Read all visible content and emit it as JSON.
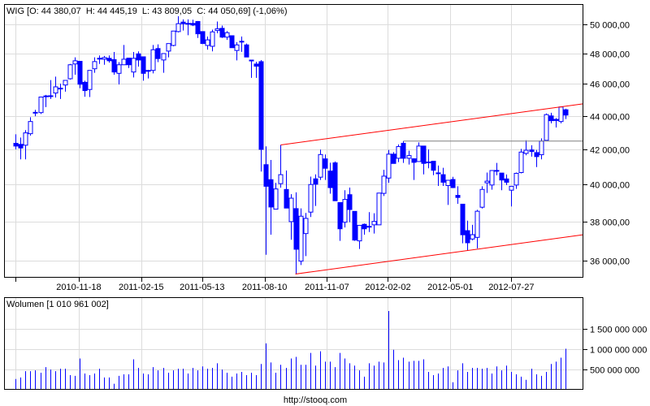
{
  "header": {
    "price_label": "WIG [O: 44 380,07  H: 44 445,19  L: 43 809,05  C: 44 050,69] (-1,06%)",
    "volume_label": "Wolumen [1 010 961 002]",
    "footer_url": "http://stooq.com"
  },
  "colors": {
    "candle": "#0000ff",
    "channel_line": "#ff0000",
    "resistance_line": "#808080",
    "grid": "#dcdcdc",
    "volume_bar": "#0000ff"
  },
  "chart_data": [
    {
      "type": "candlestick",
      "interval": "weekly",
      "y_scale": "log",
      "ylim": [
        35000,
        51000
      ],
      "grid": true,
      "y_ticks": [
        {
          "value": 50000,
          "label": "50 000,00"
        },
        {
          "value": 48000,
          "label": "48 000,00"
        },
        {
          "value": 46000,
          "label": "46 000,00"
        },
        {
          "value": 44000,
          "label": "44 000,00"
        },
        {
          "value": 42000,
          "label": "42 000,00"
        },
        {
          "value": 40000,
          "label": "40 000,00"
        },
        {
          "value": 38000,
          "label": "38 000,00"
        },
        {
          "value": 36000,
          "label": "36 000,00"
        }
      ],
      "x_ticks": [
        "2010-11-18",
        "2011-02-15",
        "2011-05-13",
        "2011-08-10",
        "2011-11-07",
        "2012-02-02",
        "2012-05-01",
        "2012-07-27"
      ],
      "ohlc": [
        [
          42358,
          42894,
          42000,
          42195
        ],
        [
          42293,
          42700,
          41422,
          42081
        ],
        [
          42244,
          43138,
          41422,
          42975
        ],
        [
          42927,
          43919,
          42813,
          43659
        ],
        [
          44180,
          44373,
          43984,
          44220
        ],
        [
          44203,
          45170,
          44119,
          45170
        ],
        [
          45200,
          45305,
          44542,
          45240
        ],
        [
          45220,
          46245,
          45051,
          45250
        ],
        [
          45424,
          46470,
          45136,
          45814
        ],
        [
          45700,
          46017,
          45051,
          45730
        ],
        [
          45933,
          46228,
          45509,
          46228
        ],
        [
          46333,
          47295,
          46280,
          47243
        ],
        [
          47295,
          47733,
          46595,
          47505
        ],
        [
          47470,
          47470,
          45730,
          45983
        ],
        [
          46105,
          46210,
          45187,
          45577
        ],
        [
          45645,
          46875,
          45170,
          46875
        ],
        [
          46980,
          47733,
          46718,
          47453
        ],
        [
          47630,
          47860,
          47295,
          47670
        ],
        [
          47610,
          47825,
          47243,
          47720
        ],
        [
          47668,
          47860,
          47383,
          47505
        ],
        [
          47580,
          48090,
          46595,
          46770
        ],
        [
          46683,
          47418,
          45968,
          47243
        ],
        [
          47243,
          48560,
          47243,
          47610
        ],
        [
          47680,
          47680,
          47033,
          47243
        ],
        [
          46770,
          48090,
          46420,
          47668
        ],
        [
          47965,
          48130,
          47120,
          47558
        ],
        [
          47768,
          47768,
          46210,
          46683
        ],
        [
          46830,
          46910,
          46350,
          46870
        ],
        [
          46875,
          48560,
          46683,
          48240
        ],
        [
          48320,
          48600,
          47420,
          47650
        ],
        [
          47558,
          47983,
          46718,
          47983
        ],
        [
          48150,
          48655,
          47733,
          48655
        ],
        [
          48528,
          49509,
          48470,
          49509
        ],
        [
          49472,
          50547,
          49415,
          50019
        ],
        [
          50130,
          50320,
          49547,
          50019
        ],
        [
          50000,
          50320,
          49226,
          50040
        ],
        [
          50038,
          50300,
          49849,
          49924
        ],
        [
          50170,
          50208,
          49038,
          49320
        ],
        [
          49472,
          49472,
          48622,
          48660
        ],
        [
          48528,
          49132,
          48245,
          48905
        ],
        [
          48472,
          49604,
          48132,
          49453
        ],
        [
          49547,
          50170,
          49358,
          49660
        ],
        [
          49698,
          49887,
          49038,
          49094
        ],
        [
          49094,
          49509,
          48905,
          49396
        ],
        [
          49188,
          49188,
          48377,
          48377
        ],
        [
          48189,
          48754,
          47530,
          48566
        ],
        [
          48770,
          49132,
          48094,
          48810
        ],
        [
          48566,
          48660,
          47755,
          47755
        ],
        [
          47530,
          47560,
          46388,
          47550
        ],
        [
          47290,
          47440,
          46388,
          47150
        ],
        [
          47447,
          47552,
          40724,
          42000
        ],
        [
          41118,
          42179,
          36276,
          39900
        ],
        [
          40268,
          41386,
          37305,
          38767
        ],
        [
          38652,
          40094,
          38652,
          39754
        ],
        [
          40047,
          42260,
          39826,
          40551
        ],
        [
          39725,
          40787,
          38710,
          38710
        ],
        [
          37986,
          39464,
          37041,
          39246
        ],
        [
          38681,
          39565,
          35320,
          36556
        ],
        [
          35958,
          38696,
          35764,
          38276
        ],
        [
          37361,
          38450,
          36209,
          38160
        ],
        [
          38493,
          40441,
          38232,
          40000
        ],
        [
          40315,
          40567,
          38826,
          40016
        ],
        [
          40409,
          41985,
          40252,
          41701
        ],
        [
          41449,
          41701,
          40252,
          40913
        ],
        [
          40756,
          41228,
          39492,
          39826
        ],
        [
          41222,
          41300,
          39107,
          39107
        ],
        [
          39006,
          39006,
          36985,
          37611
        ],
        [
          37958,
          39683,
          37680,
          39179
        ],
        [
          39438,
          39827,
          37958,
          38632
        ],
        [
          38532,
          38532,
          36985,
          37027
        ],
        [
          36985,
          37791,
          36569,
          37791
        ],
        [
          37847,
          37889,
          37305,
          37611
        ],
        [
          37720,
          38490,
          37444,
          37740
        ],
        [
          37819,
          38432,
          37361,
          38000
        ],
        [
          37819,
          39525,
          37819,
          39525
        ],
        [
          39510,
          40827,
          39366,
          40468
        ],
        [
          40359,
          41969,
          40093,
          41723
        ],
        [
          41723,
          41840,
          41188,
          41188
        ],
        [
          41485,
          42293,
          41266,
          42163
        ],
        [
          42358,
          42489,
          41220,
          41485
        ],
        [
          41485,
          41922,
          41126,
          41640
        ],
        [
          41454,
          41485,
          40253,
          41250
        ],
        [
          41298,
          42407,
          41298,
          42195
        ],
        [
          42195,
          42195,
          40565,
          41190
        ],
        [
          41270,
          42000,
          40910,
          41240
        ],
        [
          41314,
          41314,
          40519,
          40800
        ],
        [
          40650,
          41067,
          39920,
          40630
        ],
        [
          40550,
          40940,
          39920,
          40125
        ],
        [
          39942,
          40235,
          38880,
          40235
        ],
        [
          40280,
          40430,
          39800,
          39828
        ],
        [
          39400,
          39900,
          38940,
          39285
        ],
        [
          38920,
          38920,
          36860,
          37300
        ],
        [
          37513,
          38040,
          36500,
          36888
        ],
        [
          37082,
          37820,
          37013,
          37305
        ],
        [
          37166,
          38615,
          36600,
          38540
        ],
        [
          38756,
          39900,
          38686,
          39728
        ],
        [
          40090,
          40670,
          39530,
          40187
        ],
        [
          39971,
          40783,
          39714,
          40783
        ],
        [
          40760,
          41220,
          40515,
          40790
        ],
        [
          40640,
          40640,
          39685,
          40250
        ],
        [
          40310,
          40560,
          39970,
          40125
        ],
        [
          39685,
          39900,
          38800,
          39900
        ],
        [
          39970,
          40670,
          39757,
          40625
        ],
        [
          40670,
          42030,
          40625,
          41844
        ],
        [
          41766,
          42537,
          41657,
          41953
        ],
        [
          41969,
          42245,
          41580,
          41875
        ],
        [
          41813,
          41969,
          40983,
          41580
        ],
        [
          41690,
          42650,
          41420,
          42490
        ],
        [
          42531,
          44150,
          42531,
          44080
        ],
        [
          44000,
          44195,
          43550,
          43710
        ],
        [
          43790,
          43870,
          43300,
          43720
        ],
        [
          43660,
          44580,
          43550,
          44550
        ],
        [
          44380,
          44445,
          43809.05,
          44050.69
        ]
      ],
      "trend_lines": [
        {
          "kind": "channel-upper",
          "from_candle": 55,
          "from_price": 42260,
          "to_price_at_right_edge": 44744,
          "color": "#ff0000"
        },
        {
          "kind": "channel-lower",
          "from_candle": 58,
          "from_price": 35320,
          "to_price_at_right_edge": 37300,
          "color": "#ff0000"
        },
        {
          "kind": "horizontal",
          "from_candle": 80,
          "from_price": 42489,
          "to_price_at_right_edge": 42489,
          "color": "#808080"
        }
      ]
    },
    {
      "type": "bar",
      "ylim": [
        0,
        2300000000
      ],
      "grid": true,
      "y_ticks": [
        {
          "value": 1500000000,
          "label": "1 500 000 000"
        },
        {
          "value": 1000000000,
          "label": "1 000 000 000"
        },
        {
          "value": 500000000,
          "label": "500 000 000"
        }
      ],
      "values": [
        257000000,
        296000000,
        454000000,
        454000000,
        474000000,
        415000000,
        553000000,
        494000000,
        454000000,
        513000000,
        513000000,
        355000000,
        336000000,
        770000000,
        395000000,
        355000000,
        395000000,
        513000000,
        296000000,
        296000000,
        138000000,
        336000000,
        375000000,
        375000000,
        750000000,
        533000000,
        395000000,
        375000000,
        553000000,
        474000000,
        533000000,
        415000000,
        474000000,
        513000000,
        513000000,
        395000000,
        533000000,
        474000000,
        572000000,
        513000000,
        533000000,
        651000000,
        494000000,
        415000000,
        316000000,
        395000000,
        434000000,
        355000000,
        415000000,
        355000000,
        632000000,
        1145000000,
        671000000,
        415000000,
        612000000,
        533000000,
        770000000,
        809000000,
        612000000,
        612000000,
        908000000,
        592000000,
        948000000,
        691000000,
        691000000,
        553000000,
        908000000,
        770000000,
        651000000,
        592000000,
        474000000,
        316000000,
        651000000,
        592000000,
        691000000,
        671000000,
        1954000000,
        987000000,
        730000000,
        790000000,
        691000000,
        711000000,
        711000000,
        750000000,
        434000000,
        355000000,
        395000000,
        533000000,
        572000000,
        178000000,
        474000000,
        651000000,
        434000000,
        533000000,
        533000000,
        513000000,
        533000000,
        395000000,
        572000000,
        474000000,
        592000000,
        434000000,
        375000000,
        316000000,
        237000000,
        513000000,
        375000000,
        336000000,
        434000000,
        632000000,
        691000000,
        790000000,
        1010961002
      ]
    }
  ]
}
